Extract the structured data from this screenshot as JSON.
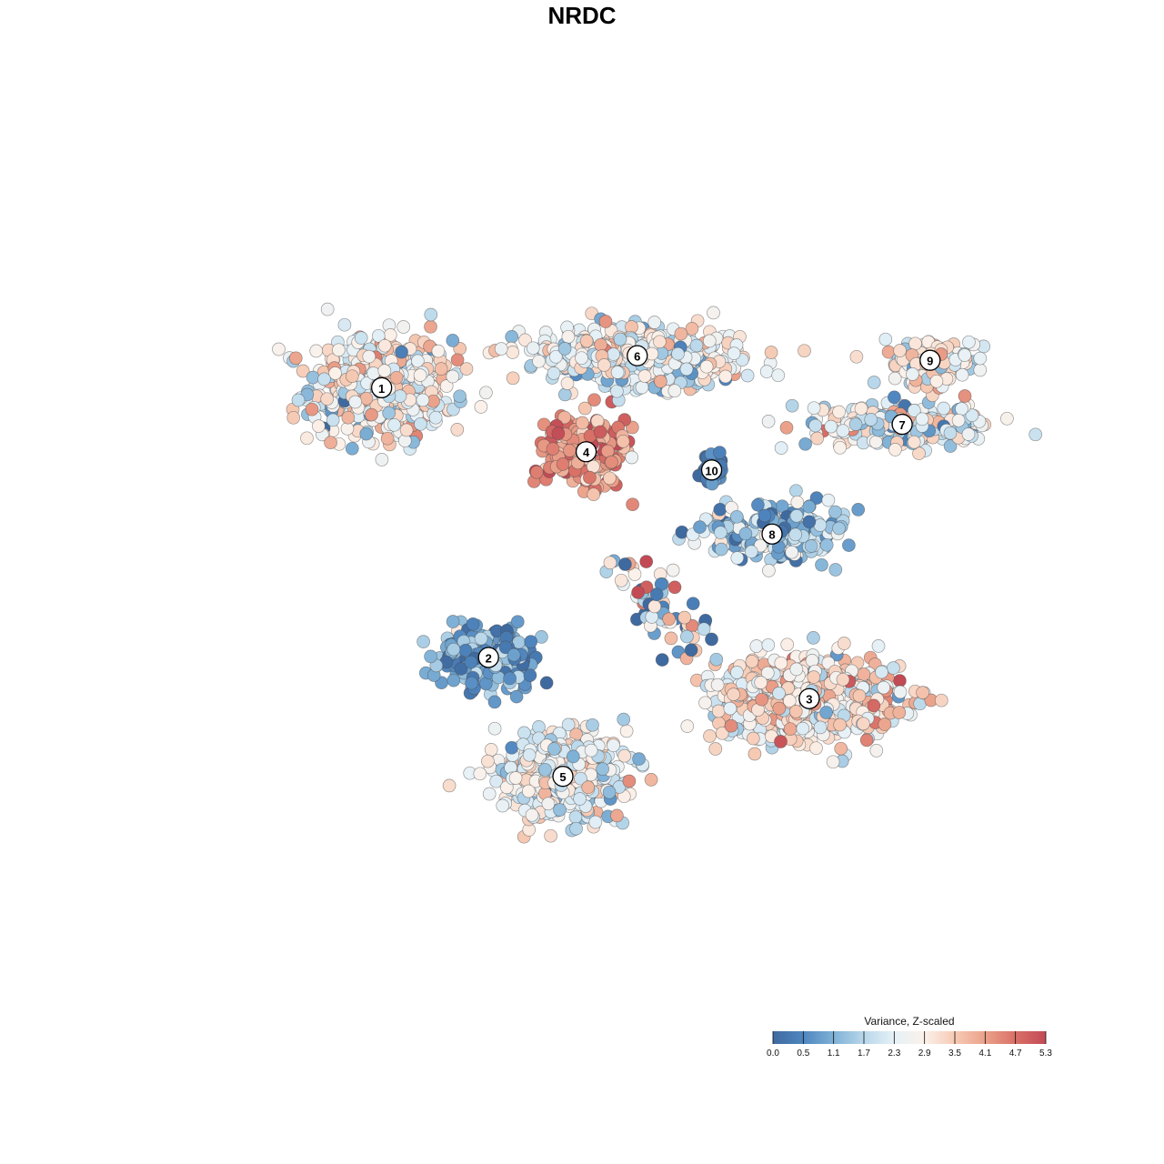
{
  "chart_data": {
    "type": "scatter",
    "title": "NRDC",
    "xlabel": "",
    "ylabel": "",
    "grid": false,
    "axes_visible": false,
    "color_scale": {
      "title": "Variance, Z-scaled",
      "min": 0.0,
      "max": 5.3,
      "ticks": [
        "0.0",
        "0.5",
        "1.1",
        "1.7",
        "2.3",
        "2.9",
        "3.5",
        "4.1",
        "4.7",
        "5.3"
      ],
      "colors": [
        "#3f6aa0",
        "#4f86bf",
        "#7fb1d6",
        "#b8d7ea",
        "#e6f1f7",
        "#fbf1ea",
        "#f6cab4",
        "#eba18a",
        "#d97067",
        "#c24a55"
      ],
      "placement": "bottom-right"
    },
    "clusters": [
      {
        "label": "1",
        "x": -24.0,
        "y": 21.0,
        "spread": [
          7.0,
          5.2
        ],
        "n": 520,
        "mean_value": 2.7,
        "sd": 0.75
      },
      {
        "label": "2",
        "x": -12.5,
        "y": -8.5,
        "spread": [
          5.0,
          3.2
        ],
        "n": 260,
        "mean_value": 1.0,
        "sd": 0.6
      },
      {
        "label": "3",
        "x": 22.0,
        "y": -13.0,
        "spread": [
          9.0,
          4.2
        ],
        "n": 620,
        "mean_value": 3.0,
        "sd": 0.75
      },
      {
        "label": "4",
        "x": -2.0,
        "y": 14.0,
        "spread": [
          3.8,
          3.4
        ],
        "n": 260,
        "mean_value": 4.3,
        "sd": 0.55
      },
      {
        "label": "5",
        "x": -4.5,
        "y": -21.5,
        "spread": [
          6.5,
          4.0
        ],
        "n": 480,
        "mean_value": 2.4,
        "sd": 0.7
      },
      {
        "label": "6",
        "x": 3.5,
        "y": 24.5,
        "spread": [
          10.0,
          2.8
        ],
        "n": 520,
        "mean_value": 2.5,
        "sd": 0.7
      },
      {
        "label": "7",
        "x": 32.0,
        "y": 17.0,
        "spread": [
          8.5,
          2.3
        ],
        "n": 260,
        "mean_value": 2.6,
        "sd": 0.8
      },
      {
        "label": "8",
        "x": 18.0,
        "y": 5.0,
        "spread": [
          6.5,
          2.6
        ],
        "n": 260,
        "mean_value": 1.6,
        "sd": 0.8
      },
      {
        "label": "9",
        "x": 35.0,
        "y": 24.0,
        "spread": [
          4.5,
          2.2
        ],
        "n": 150,
        "mean_value": 2.8,
        "sd": 0.7
      },
      {
        "label": "10",
        "x": 11.5,
        "y": 12.0,
        "spread": [
          1.3,
          1.4
        ],
        "n": 55,
        "mean_value": 0.4,
        "sd": 0.3
      }
    ],
    "xlim": [
      -45,
      45
    ],
    "ylim": [
      -45,
      45
    ]
  }
}
